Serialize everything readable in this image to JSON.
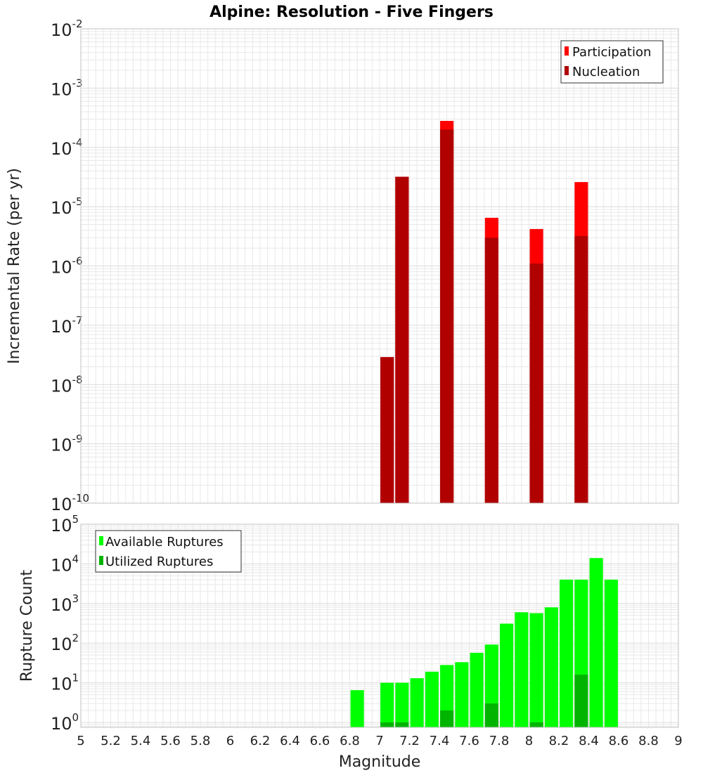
{
  "title": "Alpine: Resolution - Five Fingers",
  "colors": {
    "participation": "#ff0000",
    "nucleation": "#b00000",
    "available": "#00ff00",
    "utilized": "#00b400",
    "plot_border": "#c0c0c0",
    "grid": "#e8e8e8"
  },
  "chart_data": [
    {
      "type": "bar",
      "ylabel": "Incremental Rate (per yr)",
      "yscale": "log",
      "xlim": [
        5,
        9
      ],
      "ylim": [
        1e-10,
        0.01
      ],
      "y_exponents": [
        -10,
        -9,
        -8,
        -7,
        -6,
        -5,
        -4,
        -3,
        -2
      ],
      "grid": true,
      "legend_position": "top-right",
      "bar_width": 0.09,
      "series": [
        {
          "name": "Participation",
          "x": [
            7.05,
            7.15,
            7.45,
            7.75,
            8.05,
            8.35
          ],
          "values": [
            2.9e-08,
            3.2e-05,
            0.00028,
            6.5e-06,
            4.2e-06,
            2.6e-05
          ]
        },
        {
          "name": "Nucleation",
          "x": [
            7.05,
            7.15,
            7.45,
            7.75,
            8.05,
            8.35
          ],
          "values": [
            2.9e-08,
            3.2e-05,
            0.0002,
            3e-06,
            1.1e-06,
            3.2e-06
          ]
        }
      ]
    },
    {
      "type": "bar",
      "xlabel": "Magnitude",
      "ylabel": "Rupture Count",
      "yscale": "log",
      "xlim": [
        5,
        9
      ],
      "ylim": [
        0.75,
        100000
      ],
      "y_exponents": [
        0,
        1,
        2,
        3,
        4,
        5
      ],
      "x_ticks": [
        "5",
        "5.2",
        "5.4",
        "5.6",
        "5.8",
        "6",
        "6.2",
        "6.4",
        "6.6",
        "6.8",
        "7",
        "7.2",
        "7.4",
        "7.6",
        "7.8",
        "8",
        "8.2",
        "8.4",
        "8.6",
        "8.8",
        "9"
      ],
      "grid": true,
      "legend_position": "top-left",
      "bar_width": 0.09,
      "series": [
        {
          "name": "Available Ruptures",
          "x": [
            6.85,
            7.05,
            7.15,
            7.25,
            7.35,
            7.45,
            7.55,
            7.65,
            7.75,
            7.85,
            7.95,
            8.05,
            8.15,
            8.25,
            8.35,
            8.45,
            8.55
          ],
          "values": [
            6.5,
            10,
            10,
            13,
            19,
            28,
            33,
            57,
            92,
            310,
            600,
            570,
            800,
            4000,
            4000,
            14000,
            4000
          ]
        },
        {
          "name": "Utilized Ruptures",
          "x": [
            7.05,
            7.15,
            7.45,
            7.75,
            8.05,
            8.35
          ],
          "values": [
            1,
            1,
            2,
            3,
            1,
            16
          ]
        }
      ]
    }
  ]
}
